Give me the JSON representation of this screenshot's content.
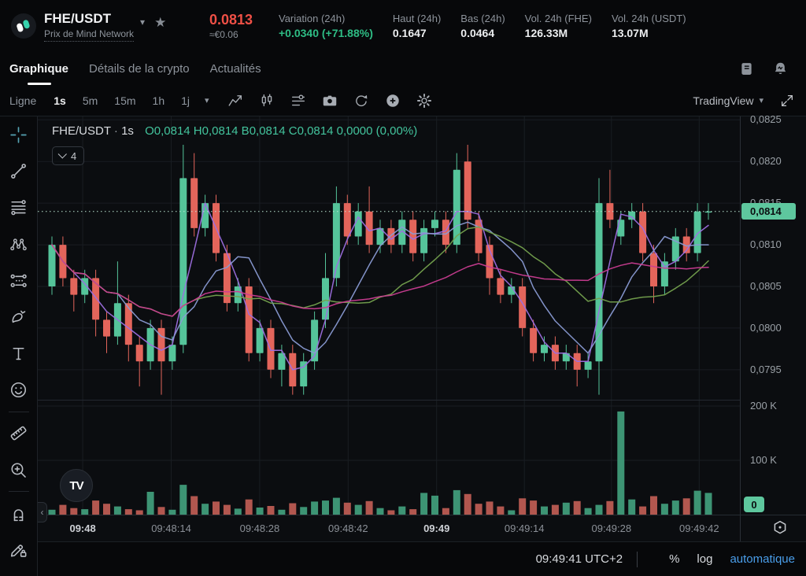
{
  "header": {
    "pair": "FHE/USDT",
    "subtitle": "Prix de Mind Network",
    "price": "0.0813",
    "price_fiat": "≈€0.06",
    "stats": [
      {
        "label": "Variation (24h)",
        "value": "+0.0340 (+71.88%)",
        "positive": true
      },
      {
        "label": "Haut (24h)",
        "value": "0.1647"
      },
      {
        "label": "Bas (24h)",
        "value": "0.0464"
      },
      {
        "label": "Vol. 24h (FHE)",
        "value": "126.33M"
      },
      {
        "label": "Vol. 24h (USDT)",
        "value": "13.07M"
      }
    ]
  },
  "tabs": {
    "items": [
      {
        "label": "Graphique",
        "active": true
      },
      {
        "label": "Détails de la crypto",
        "active": false
      },
      {
        "label": "Actualités",
        "active": false
      }
    ],
    "icons": [
      "orders-journal",
      "price-alert-bell"
    ]
  },
  "toolbar": {
    "chart_style": "Ligne",
    "intervals": [
      {
        "label": "1s",
        "active": true
      },
      {
        "label": "5m",
        "active": false
      },
      {
        "label": "15m",
        "active": false
      },
      {
        "label": "1h",
        "active": false
      },
      {
        "label": "1j",
        "active": false
      }
    ],
    "caret": "▾",
    "icons": [
      "indicators",
      "candlestick-style",
      "chart-display-settings",
      "camera-snapshot",
      "refresh",
      "add-indicator",
      "chart-settings-gear"
    ],
    "provider": "TradingView",
    "right_icons": [
      "fullscreen-expand"
    ]
  },
  "left_tools": {
    "groups": [
      [
        "crosshair",
        "trend-line",
        "fib-retracement",
        "xabcd-pattern",
        "forecast",
        "brush",
        "text",
        "emoji"
      ],
      [
        "ruler",
        "zoom-in"
      ],
      [
        "magnet",
        "drawing-lock"
      ]
    ]
  },
  "legend": {
    "title": "FHE/USDT",
    "separator": "·",
    "interval": "1s",
    "ohlc": "O0,0814  H0,0814  B0,0814  C0,0814  0,0000 (0,00%)",
    "indicators_collapsed": "4"
  },
  "watermark": "TV",
  "collapse_handle": "‹",
  "chart_data": {
    "type": "candlestick",
    "title": "FHE/USDT · 1s",
    "symbol": "FHE/USDT",
    "interval": "1s",
    "ylim": [
      0.07914,
      0.08254
    ],
    "vlim": [
      0,
      212000
    ],
    "grid": true,
    "legend_position": "top-left",
    "price_ticks": [
      0.0825,
      0.082,
      0.0815,
      0.081,
      0.0805,
      0.08,
      0.0795
    ],
    "volume_ticks": [
      {
        "label": "200 K",
        "value": 200000
      },
      {
        "label": "100 K",
        "value": 100000
      }
    ],
    "zero_label": "0",
    "last_price": 0.0814,
    "time_labels": [
      {
        "label": "09:48",
        "x": 0.064,
        "bold": true
      },
      {
        "label": "09:48:14",
        "x": 0.19,
        "bold": false
      },
      {
        "label": "09:48:28",
        "x": 0.316,
        "bold": false
      },
      {
        "label": "09:48:42",
        "x": 0.442,
        "bold": false
      },
      {
        "label": "09:49",
        "x": 0.568,
        "bold": true
      },
      {
        "label": "09:49:14",
        "x": 0.693,
        "bold": false
      },
      {
        "label": "09:49:28",
        "x": 0.817,
        "bold": false
      },
      {
        "label": "09:49:42",
        "x": 0.942,
        "bold": false
      }
    ],
    "ma_windows": [
      3,
      7,
      14,
      28
    ],
    "ma_colors": [
      "#9d6fe0",
      "#8a9bd4",
      "#74a14e",
      "#cb3d92"
    ],
    "colors": {
      "up": "#55c49a",
      "down": "#e3655b",
      "vol_up": "#3d9474",
      "vol_down": "#b2574f",
      "last_price_line": "#bce7d3",
      "badge_bg": "#5ec79e",
      "badge_text": "#0b0d10",
      "grid": "#191d22",
      "pane_divider": "#232830"
    },
    "candles": [
      [
        0.0805,
        0.0811,
        0.0804,
        0.081,
        9000
      ],
      [
        0.081,
        0.0811,
        0.0805,
        0.0806,
        18000
      ],
      [
        0.0806,
        0.0807,
        0.0802,
        0.0804,
        12000
      ],
      [
        0.0804,
        0.0807,
        0.0803,
        0.0806,
        10000
      ],
      [
        0.0806,
        0.0807,
        0.0799,
        0.0801,
        26000
      ],
      [
        0.0801,
        0.0802,
        0.0797,
        0.0799,
        20000
      ],
      [
        0.0799,
        0.0808,
        0.0798,
        0.0803,
        15000
      ],
      [
        0.0803,
        0.0804,
        0.0796,
        0.0798,
        10000
      ],
      [
        0.0798,
        0.0799,
        0.0793,
        0.0796,
        8000
      ],
      [
        0.0796,
        0.0801,
        0.0795,
        0.08,
        42000
      ],
      [
        0.08,
        0.0801,
        0.0792,
        0.0796,
        14000
      ],
      [
        0.0796,
        0.0799,
        0.0795,
        0.0798,
        9000
      ],
      [
        0.0798,
        0.0822,
        0.0797,
        0.0818,
        55000
      ],
      [
        0.0818,
        0.0821,
        0.0811,
        0.0812,
        34000
      ],
      [
        0.0812,
        0.0816,
        0.0811,
        0.0815,
        20000
      ],
      [
        0.0815,
        0.0816,
        0.0808,
        0.0809,
        24000
      ],
      [
        0.0809,
        0.081,
        0.0802,
        0.0803,
        18000
      ],
      [
        0.0803,
        0.0806,
        0.0802,
        0.0805,
        11000
      ],
      [
        0.0805,
        0.0806,
        0.0796,
        0.0797,
        28000
      ],
      [
        0.0797,
        0.0801,
        0.0796,
        0.08,
        13000
      ],
      [
        0.08,
        0.0801,
        0.0794,
        0.0795,
        16000
      ],
      [
        0.0795,
        0.0798,
        0.0793,
        0.0797,
        9000
      ],
      [
        0.0797,
        0.0798,
        0.0792,
        0.0793,
        21000
      ],
      [
        0.0793,
        0.0797,
        0.0792,
        0.0796,
        14000
      ],
      [
        0.0796,
        0.0802,
        0.0795,
        0.0801,
        24000
      ],
      [
        0.0801,
        0.0809,
        0.08,
        0.0806,
        26000
      ],
      [
        0.0806,
        0.0817,
        0.0805,
        0.0815,
        31000
      ],
      [
        0.0815,
        0.0816,
        0.081,
        0.0811,
        22000
      ],
      [
        0.0811,
        0.0815,
        0.081,
        0.0814,
        18000
      ],
      [
        0.0814,
        0.0817,
        0.0809,
        0.081,
        25000
      ],
      [
        0.081,
        0.0813,
        0.0809,
        0.0812,
        12000
      ],
      [
        0.0812,
        0.0813,
        0.0809,
        0.081,
        8000
      ],
      [
        0.081,
        0.0814,
        0.0809,
        0.0813,
        15000
      ],
      [
        0.0813,
        0.0814,
        0.0808,
        0.0809,
        10000
      ],
      [
        0.0809,
        0.0813,
        0.0808,
        0.0812,
        40000
      ],
      [
        0.0812,
        0.0814,
        0.0811,
        0.0813,
        35000
      ],
      [
        0.0813,
        0.0814,
        0.0809,
        0.081,
        12000
      ],
      [
        0.081,
        0.0821,
        0.0809,
        0.0819,
        45000
      ],
      [
        0.082,
        0.0822,
        0.0812,
        0.0813,
        38000
      ],
      [
        0.0813,
        0.0814,
        0.0808,
        0.0809,
        20000
      ],
      [
        0.081,
        0.0811,
        0.0804,
        0.0806,
        24000
      ],
      [
        0.0806,
        0.0807,
        0.0803,
        0.0804,
        15000
      ],
      [
        0.0804,
        0.0806,
        0.0803,
        0.0805,
        8000
      ],
      [
        0.0805,
        0.0806,
        0.0799,
        0.08,
        30000
      ],
      [
        0.08,
        0.0801,
        0.0796,
        0.0797,
        26000
      ],
      [
        0.0797,
        0.0799,
        0.0796,
        0.0798,
        15000
      ],
      [
        0.0798,
        0.0799,
        0.0795,
        0.0796,
        18000
      ],
      [
        0.0796,
        0.0798,
        0.0795,
        0.0797,
        22000
      ],
      [
        0.0797,
        0.0798,
        0.0793,
        0.0795,
        25000
      ],
      [
        0.0795,
        0.0797,
        0.0794,
        0.0796,
        12000
      ],
      [
        0.0796,
        0.0818,
        0.0792,
        0.0815,
        18000
      ],
      [
        0.0815,
        0.0819,
        0.0812,
        0.0813,
        25000
      ],
      [
        0.0811,
        0.0814,
        0.081,
        0.0813,
        190000
      ],
      [
        0.0813,
        0.0815,
        0.0812,
        0.0814,
        28000
      ],
      [
        0.0814,
        0.0815,
        0.0808,
        0.0809,
        15000
      ],
      [
        0.0809,
        0.081,
        0.0803,
        0.0805,
        34000
      ],
      [
        0.0805,
        0.0809,
        0.0804,
        0.0808,
        20000
      ],
      [
        0.0808,
        0.0812,
        0.0807,
        0.0811,
        26000
      ],
      [
        0.0811,
        0.0812,
        0.0808,
        0.0809,
        30000
      ],
      [
        0.0809,
        0.0815,
        0.0808,
        0.0814,
        44000
      ],
      [
        0.0814,
        0.0815,
        0.0813,
        0.0814,
        40000
      ]
    ]
  },
  "footer": {
    "clock": "09:49:41 UTC+2",
    "scale_percent": "%",
    "scale_log": "log",
    "scale_auto": "automatique"
  }
}
